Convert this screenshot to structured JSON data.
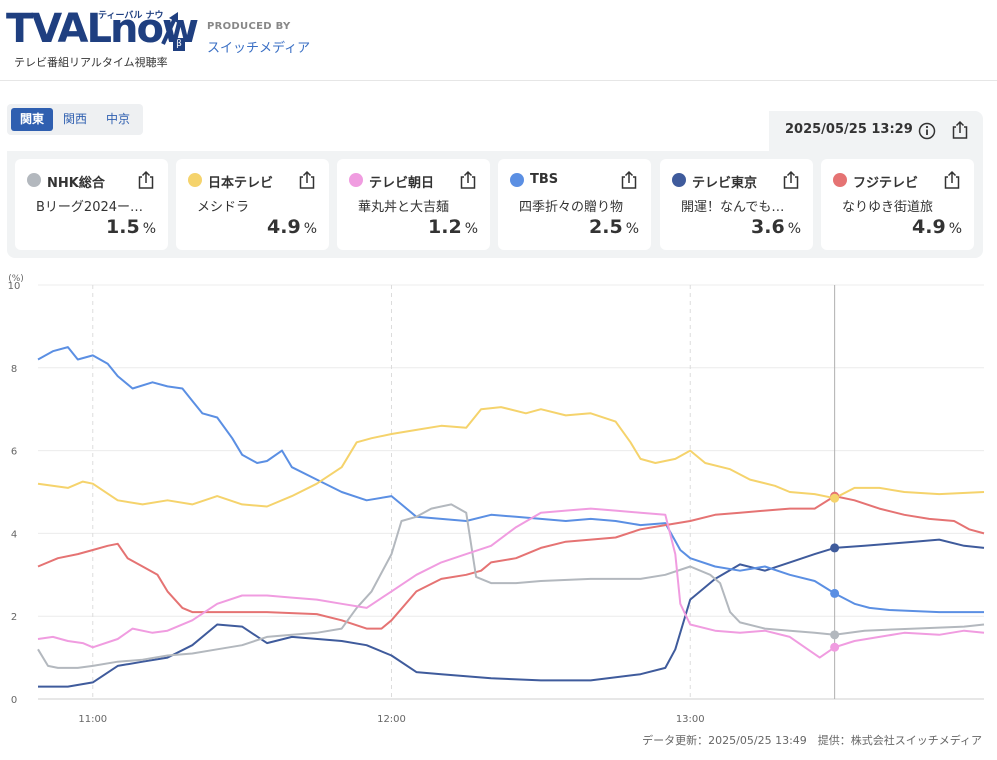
{
  "logo": {
    "brand_main": "TVAL",
    "brand_now": "now",
    "brand_kana": "ティーバル ナウ",
    "beta": "β",
    "subtitle": "テレビ番組リアルタイム視聴率"
  },
  "producer": {
    "label": "PRODUCED BY",
    "name": "スイッチメディア"
  },
  "regions": [
    {
      "label": "関東",
      "active": true
    },
    {
      "label": "関西",
      "active": false
    },
    {
      "label": "中京",
      "active": false
    }
  ],
  "datetime": "2025/05/25 13:29",
  "icons": {
    "info": "info-icon",
    "share": "share-icon"
  },
  "stations": [
    {
      "name": "NHK総合",
      "program": "Bリーグ2024ー…",
      "rating": "1.5",
      "unit": "%",
      "color": "#b3b8be"
    },
    {
      "name": "日本テレビ",
      "program": "メシドラ",
      "rating": "4.9",
      "unit": "%",
      "color": "#f5d36c"
    },
    {
      "name": "テレビ朝日",
      "program": "華丸丼と大吉麺",
      "rating": "1.2",
      "unit": "%",
      "color": "#f09ce0"
    },
    {
      "name": "TBS",
      "program": "四季折々の贈り物",
      "rating": "2.5",
      "unit": "%",
      "color": "#5b8fe3"
    },
    {
      "name": "テレビ東京",
      "program": "開運！なんでも…",
      "rating": "3.6",
      "unit": "%",
      "color": "#3f5b9c"
    },
    {
      "name": "フジテレビ",
      "program": "なりゆき街道旅",
      "rating": "4.9",
      "unit": "%",
      "color": "#e57373"
    }
  ],
  "footer": "データ更新：2025/05/25 13:49　提供：株式会社スイッチメディア",
  "chart_data": {
    "type": "line",
    "yunit": "(%)",
    "ylim": [
      0,
      10
    ],
    "yticks": [
      "0",
      "2",
      "4",
      "6",
      "8",
      "10"
    ],
    "xlim": [
      "10:49",
      "13:59"
    ],
    "xticks": [
      "11:00",
      "12:00",
      "13:00"
    ],
    "cursor_time": "13:29",
    "series": [
      {
        "color": "#3f5b9c",
        "points": [
          [
            "10:49",
            0.3
          ],
          [
            "10:55",
            0.3
          ],
          [
            "11:00",
            0.4
          ],
          [
            "11:05",
            0.8
          ],
          [
            "11:10",
            0.9
          ],
          [
            "11:15",
            1.0
          ],
          [
            "11:20",
            1.3
          ],
          [
            "11:25",
            1.8
          ],
          [
            "11:30",
            1.75
          ],
          [
            "11:35",
            1.35
          ],
          [
            "11:40",
            1.5
          ],
          [
            "11:50",
            1.4
          ],
          [
            "11:55",
            1.3
          ],
          [
            "12:00",
            1.05
          ],
          [
            "12:05",
            0.65
          ],
          [
            "12:10",
            0.6
          ],
          [
            "12:20",
            0.5
          ],
          [
            "12:30",
            0.45
          ],
          [
            "12:40",
            0.45
          ],
          [
            "12:50",
            0.6
          ],
          [
            "12:55",
            0.75
          ],
          [
            "12:57",
            1.2
          ],
          [
            "13:00",
            2.4
          ],
          [
            "13:05",
            2.9
          ],
          [
            "13:10",
            3.25
          ],
          [
            "13:15",
            3.1
          ],
          [
            "13:20",
            3.3
          ],
          [
            "13:25",
            3.5
          ],
          [
            "13:29",
            3.65
          ],
          [
            "13:35",
            3.7
          ],
          [
            "13:40",
            3.75
          ],
          [
            "13:45",
            3.8
          ],
          [
            "13:50",
            3.85
          ],
          [
            "13:55",
            3.7
          ],
          [
            "13:59",
            3.65
          ]
        ]
      },
      {
        "color": "#5b8fe3",
        "points": [
          [
            "10:49",
            8.2
          ],
          [
            "10:52",
            8.4
          ],
          [
            "10:55",
            8.5
          ],
          [
            "10:57",
            8.2
          ],
          [
            "11:00",
            8.3
          ],
          [
            "11:03",
            8.1
          ],
          [
            "11:05",
            7.8
          ],
          [
            "11:08",
            7.5
          ],
          [
            "11:12",
            7.65
          ],
          [
            "11:15",
            7.55
          ],
          [
            "11:18",
            7.5
          ],
          [
            "11:20",
            7.2
          ],
          [
            "11:22",
            6.9
          ],
          [
            "11:25",
            6.8
          ],
          [
            "11:28",
            6.3
          ],
          [
            "11:30",
            5.9
          ],
          [
            "11:33",
            5.7
          ],
          [
            "11:35",
            5.75
          ],
          [
            "11:38",
            6.0
          ],
          [
            "11:40",
            5.6
          ],
          [
            "11:45",
            5.3
          ],
          [
            "11:50",
            5.0
          ],
          [
            "11:55",
            4.8
          ],
          [
            "12:00",
            4.9
          ],
          [
            "12:02",
            4.7
          ],
          [
            "12:05",
            4.4
          ],
          [
            "12:10",
            4.35
          ],
          [
            "12:15",
            4.3
          ],
          [
            "12:20",
            4.45
          ],
          [
            "12:25",
            4.4
          ],
          [
            "12:30",
            4.35
          ],
          [
            "12:35",
            4.3
          ],
          [
            "12:40",
            4.35
          ],
          [
            "12:45",
            4.3
          ],
          [
            "12:50",
            4.2
          ],
          [
            "12:55",
            4.25
          ],
          [
            "12:58",
            3.6
          ],
          [
            "13:00",
            3.4
          ],
          [
            "13:05",
            3.2
          ],
          [
            "13:10",
            3.1
          ],
          [
            "13:15",
            3.2
          ],
          [
            "13:20",
            3.0
          ],
          [
            "13:25",
            2.85
          ],
          [
            "13:29",
            2.55
          ],
          [
            "13:33",
            2.3
          ],
          [
            "13:36",
            2.2
          ],
          [
            "13:40",
            2.15
          ],
          [
            "13:50",
            2.1
          ],
          [
            "13:59",
            2.1
          ]
        ]
      },
      {
        "color": "#e57373",
        "points": [
          [
            "10:49",
            3.2
          ],
          [
            "10:53",
            3.4
          ],
          [
            "10:57",
            3.5
          ],
          [
            "11:00",
            3.6
          ],
          [
            "11:03",
            3.7
          ],
          [
            "11:05",
            3.75
          ],
          [
            "11:07",
            3.4
          ],
          [
            "11:10",
            3.2
          ],
          [
            "11:13",
            3.0
          ],
          [
            "11:15",
            2.6
          ],
          [
            "11:18",
            2.2
          ],
          [
            "11:20",
            2.1
          ],
          [
            "11:25",
            2.1
          ],
          [
            "11:35",
            2.1
          ],
          [
            "11:45",
            2.05
          ],
          [
            "11:50",
            1.9
          ],
          [
            "11:55",
            1.7
          ],
          [
            "11:58",
            1.7
          ],
          [
            "12:00",
            1.9
          ],
          [
            "12:05",
            2.6
          ],
          [
            "12:10",
            2.9
          ],
          [
            "12:15",
            3.0
          ],
          [
            "12:18",
            3.1
          ],
          [
            "12:20",
            3.3
          ],
          [
            "12:25",
            3.4
          ],
          [
            "12:30",
            3.65
          ],
          [
            "12:35",
            3.8
          ],
          [
            "12:40",
            3.85
          ],
          [
            "12:45",
            3.9
          ],
          [
            "12:50",
            4.1
          ],
          [
            "12:55",
            4.2
          ],
          [
            "13:00",
            4.3
          ],
          [
            "13:05",
            4.45
          ],
          [
            "13:10",
            4.5
          ],
          [
            "13:15",
            4.55
          ],
          [
            "13:20",
            4.6
          ],
          [
            "13:25",
            4.6
          ],
          [
            "13:29",
            4.9
          ],
          [
            "13:33",
            4.8
          ],
          [
            "13:38",
            4.6
          ],
          [
            "13:43",
            4.45
          ],
          [
            "13:48",
            4.35
          ],
          [
            "13:53",
            4.3
          ],
          [
            "13:56",
            4.1
          ],
          [
            "13:59",
            4.0
          ]
        ]
      },
      {
        "color": "#f5d36c",
        "points": [
          [
            "10:49",
            5.2
          ],
          [
            "10:55",
            5.1
          ],
          [
            "10:58",
            5.25
          ],
          [
            "11:00",
            5.2
          ],
          [
            "11:05",
            4.8
          ],
          [
            "11:10",
            4.7
          ],
          [
            "11:15",
            4.8
          ],
          [
            "11:20",
            4.7
          ],
          [
            "11:25",
            4.9
          ],
          [
            "11:30",
            4.7
          ],
          [
            "11:35",
            4.65
          ],
          [
            "11:40",
            4.9
          ],
          [
            "11:45",
            5.2
          ],
          [
            "11:50",
            5.6
          ],
          [
            "11:53",
            6.2
          ],
          [
            "11:56",
            6.3
          ],
          [
            "12:00",
            6.4
          ],
          [
            "12:05",
            6.5
          ],
          [
            "12:10",
            6.6
          ],
          [
            "12:15",
            6.55
          ],
          [
            "12:18",
            7.0
          ],
          [
            "12:22",
            7.05
          ],
          [
            "12:27",
            6.9
          ],
          [
            "12:30",
            7.0
          ],
          [
            "12:35",
            6.85
          ],
          [
            "12:40",
            6.9
          ],
          [
            "12:45",
            6.7
          ],
          [
            "12:48",
            6.2
          ],
          [
            "12:50",
            5.8
          ],
          [
            "12:53",
            5.7
          ],
          [
            "12:57",
            5.8
          ],
          [
            "13:00",
            6.0
          ],
          [
            "13:03",
            5.7
          ],
          [
            "13:08",
            5.55
          ],
          [
            "13:12",
            5.3
          ],
          [
            "13:17",
            5.15
          ],
          [
            "13:20",
            5.0
          ],
          [
            "13:25",
            4.95
          ],
          [
            "13:29",
            4.85
          ],
          [
            "13:33",
            5.1
          ],
          [
            "13:38",
            5.1
          ],
          [
            "13:43",
            5.0
          ],
          [
            "13:50",
            4.95
          ],
          [
            "13:59",
            5.0
          ]
        ]
      },
      {
        "color": "#b3b8be",
        "points": [
          [
            "10:49",
            1.2
          ],
          [
            "10:51",
            0.8
          ],
          [
            "10:53",
            0.75
          ],
          [
            "10:57",
            0.75
          ],
          [
            "11:00",
            0.8
          ],
          [
            "11:05",
            0.9
          ],
          [
            "11:10",
            0.95
          ],
          [
            "11:15",
            1.05
          ],
          [
            "11:20",
            1.1
          ],
          [
            "11:25",
            1.2
          ],
          [
            "11:30",
            1.3
          ],
          [
            "11:35",
            1.5
          ],
          [
            "11:40",
            1.55
          ],
          [
            "11:45",
            1.6
          ],
          [
            "11:50",
            1.7
          ],
          [
            "11:53",
            2.2
          ],
          [
            "11:56",
            2.6
          ],
          [
            "12:00",
            3.5
          ],
          [
            "12:02",
            4.3
          ],
          [
            "12:05",
            4.4
          ],
          [
            "12:08",
            4.6
          ],
          [
            "12:12",
            4.7
          ],
          [
            "12:15",
            4.5
          ],
          [
            "12:17",
            2.95
          ],
          [
            "12:20",
            2.8
          ],
          [
            "12:25",
            2.8
          ],
          [
            "12:30",
            2.85
          ],
          [
            "12:40",
            2.9
          ],
          [
            "12:50",
            2.9
          ],
          [
            "12:55",
            3.0
          ],
          [
            "13:00",
            3.2
          ],
          [
            "13:04",
            3.0
          ],
          [
            "13:06",
            2.8
          ],
          [
            "13:08",
            2.1
          ],
          [
            "13:10",
            1.85
          ],
          [
            "13:15",
            1.7
          ],
          [
            "13:20",
            1.65
          ],
          [
            "13:25",
            1.6
          ],
          [
            "13:29",
            1.55
          ],
          [
            "13:35",
            1.65
          ],
          [
            "13:45",
            1.7
          ],
          [
            "13:55",
            1.75
          ],
          [
            "13:59",
            1.8
          ]
        ]
      },
      {
        "color": "#f09ce0",
        "points": [
          [
            "10:49",
            1.45
          ],
          [
            "10:52",
            1.5
          ],
          [
            "10:55",
            1.4
          ],
          [
            "10:58",
            1.35
          ],
          [
            "11:00",
            1.25
          ],
          [
            "11:05",
            1.45
          ],
          [
            "11:08",
            1.7
          ],
          [
            "11:12",
            1.6
          ],
          [
            "11:15",
            1.65
          ],
          [
            "11:20",
            1.9
          ],
          [
            "11:25",
            2.3
          ],
          [
            "11:30",
            2.5
          ],
          [
            "11:35",
            2.5
          ],
          [
            "11:40",
            2.45
          ],
          [
            "11:45",
            2.4
          ],
          [
            "11:50",
            2.3
          ],
          [
            "11:55",
            2.2
          ],
          [
            "12:00",
            2.6
          ],
          [
            "12:05",
            3.0
          ],
          [
            "12:10",
            3.3
          ],
          [
            "12:15",
            3.5
          ],
          [
            "12:20",
            3.7
          ],
          [
            "12:25",
            4.15
          ],
          [
            "12:30",
            4.5
          ],
          [
            "12:35",
            4.55
          ],
          [
            "12:40",
            4.6
          ],
          [
            "12:45",
            4.55
          ],
          [
            "12:50",
            4.5
          ],
          [
            "12:55",
            4.45
          ],
          [
            "12:57",
            3.5
          ],
          [
            "12:58",
            2.3
          ],
          [
            "13:00",
            1.8
          ],
          [
            "13:05",
            1.65
          ],
          [
            "13:10",
            1.6
          ],
          [
            "13:15",
            1.65
          ],
          [
            "13:20",
            1.5
          ],
          [
            "13:23",
            1.25
          ],
          [
            "13:26",
            1.0
          ],
          [
            "13:29",
            1.25
          ],
          [
            "13:33",
            1.4
          ],
          [
            "13:38",
            1.5
          ],
          [
            "13:43",
            1.6
          ],
          [
            "13:50",
            1.55
          ],
          [
            "13:55",
            1.65
          ],
          [
            "13:59",
            1.6
          ]
        ]
      }
    ]
  }
}
